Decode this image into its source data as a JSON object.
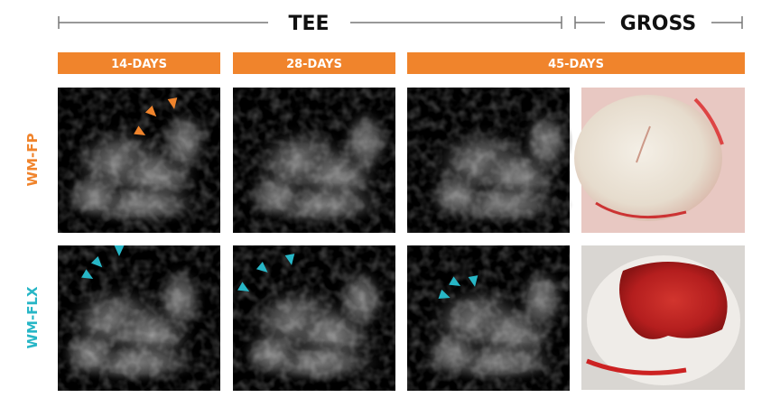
{
  "header": {
    "left": "TEE",
    "right": "GROSS"
  },
  "columns": [
    "14-DAYS",
    "28-DAYS",
    "45-DAYS"
  ],
  "rows": [
    "WM-FP",
    "WM-FLX"
  ]
}
